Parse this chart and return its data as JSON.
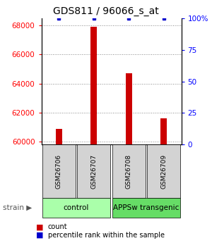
{
  "title": "GDS811 / 96066_s_at",
  "samples": [
    "GSM26706",
    "GSM26707",
    "GSM26708",
    "GSM26709"
  ],
  "counts": [
    60900,
    67900,
    64700,
    61600
  ],
  "percentiles": [
    100,
    100,
    100,
    100
  ],
  "group_defs": [
    {
      "label": "control",
      "start": 0,
      "end": 2,
      "color": "#aaffaa"
    },
    {
      "label": "APPSw transgenic",
      "start": 2,
      "end": 4,
      "color": "#66dd66"
    }
  ],
  "ylim_left": [
    59800,
    68500
  ],
  "ylim_right": [
    0,
    100
  ],
  "yticks_left": [
    60000,
    62000,
    64000,
    66000,
    68000
  ],
  "yticks_right": [
    0,
    25,
    50,
    75,
    100
  ],
  "bar_color": "#cc0000",
  "percentile_color": "#0000cc",
  "bar_width": 0.18,
  "background_color": "#ffffff",
  "legend_count_label": "count",
  "legend_percentile_label": "percentile rank within the sample",
  "title_fontsize": 10,
  "tick_fontsize": 7.5,
  "sample_fontsize": 6.5,
  "group_fontsize": 7.5,
  "legend_fontsize": 7
}
